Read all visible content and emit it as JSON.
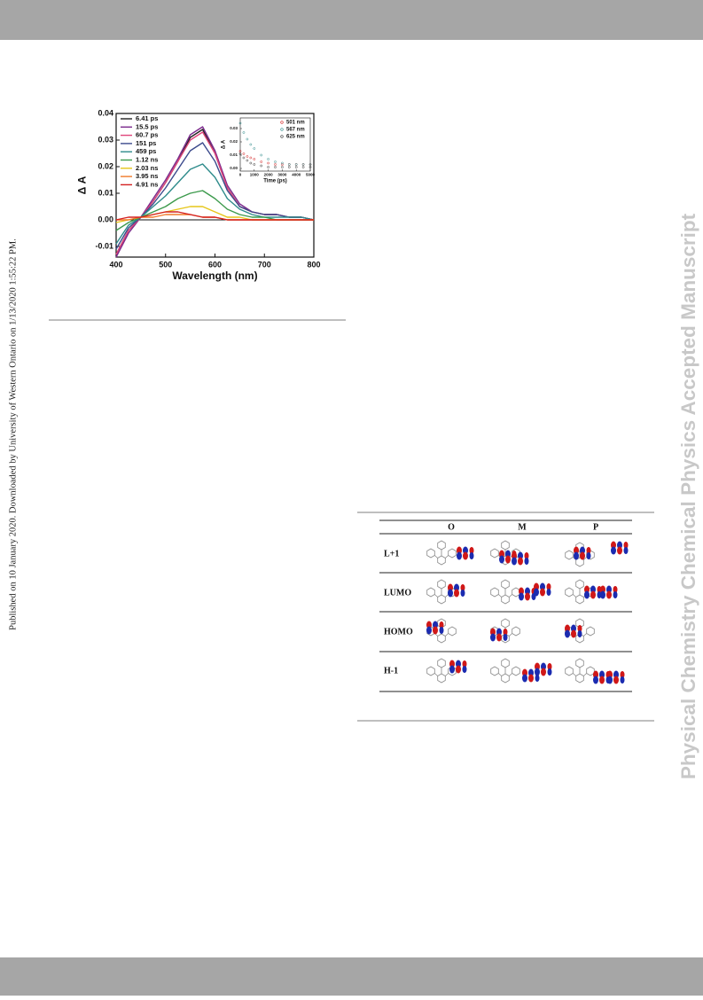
{
  "side_note": "Published on 10 January 2020. Downloaded by University of Western Ontario on 1/13/2020 1:55:22 PM.",
  "watermark": "Physical Chemistry Chemical Physics Accepted Manuscript",
  "chart_data": [
    {
      "type": "line",
      "xlabel": "Wavelength (nm)",
      "ylabel": "Δ A",
      "xlim": [
        400,
        800
      ],
      "xticks": [
        400,
        500,
        600,
        700,
        800
      ],
      "ylim": [
        -0.014,
        0.04
      ],
      "yticks": [
        -0.01,
        {
          "value": 0,
          "label": "0.00"
        },
        0.01,
        0.02,
        0.03,
        0.04
      ],
      "zero_line": true,
      "legend": "upper left",
      "x": [
        400,
        425,
        450,
        475,
        500,
        525,
        550,
        575,
        600,
        625,
        650,
        675,
        700,
        725,
        750,
        775,
        800
      ],
      "series": [
        {
          "name": "6.41 ps",
          "color": "#222222",
          "values": [
            -0.013,
            -0.004,
            0.001,
            0.007,
            0.014,
            0.022,
            0.031,
            0.034,
            0.025,
            0.012,
            0.005,
            0.003,
            0.002,
            0.002,
            0.001,
            0.001,
            0
          ]
        },
        {
          "name": "15.5 ps",
          "color": "#7b2a8c",
          "values": [
            -0.014,
            -0.005,
            0.001,
            0.008,
            0.015,
            0.023,
            0.032,
            0.035,
            0.026,
            0.013,
            0.006,
            0.003,
            0.002,
            0.002,
            0.001,
            0.001,
            0
          ]
        },
        {
          "name": "60.7 ps",
          "color": "#e0457b",
          "values": [
            -0.013,
            -0.004,
            0.001,
            0.007,
            0.014,
            0.022,
            0.03,
            0.033,
            0.025,
            0.012,
            0.005,
            0.003,
            0.002,
            0.002,
            0.001,
            0.001,
            0
          ]
        },
        {
          "name": "151 ps",
          "color": "#3b4a8c",
          "values": [
            -0.011,
            -0.003,
            0.001,
            0.006,
            0.012,
            0.019,
            0.026,
            0.029,
            0.022,
            0.011,
            0.005,
            0.003,
            0.002,
            0.002,
            0.001,
            0.001,
            0
          ]
        },
        {
          "name": "459 ps",
          "color": "#2e8b8b",
          "values": [
            -0.009,
            -0.002,
            0.001,
            0.005,
            0.009,
            0.014,
            0.019,
            0.021,
            0.016,
            0.008,
            0.004,
            0.002,
            0.001,
            0.001,
            0.001,
            0.001,
            0
          ]
        },
        {
          "name": "1.12 ns",
          "color": "#3c9a4c",
          "values": [
            -0.004,
            -0.001,
            0.001,
            0.003,
            0.005,
            0.008,
            0.01,
            0.011,
            0.008,
            0.004,
            0.002,
            0.001,
            0.001,
            0,
            0,
            0,
            0
          ]
        },
        {
          "name": "2.03 ns",
          "color": "#e6c619",
          "values": [
            -0.001,
            0,
            0.001,
            0.002,
            0.003,
            0.004,
            0.005,
            0.005,
            0.003,
            0.001,
            0.001,
            0,
            0,
            0,
            0,
            0,
            0
          ]
        },
        {
          "name": "3.95 ns",
          "color": "#f07a2a",
          "values": [
            0,
            0,
            0.001,
            0.001,
            0.002,
            0.002,
            0.002,
            0.001,
            0.001,
            0,
            0,
            0,
            0,
            0,
            0,
            0,
            0
          ]
        },
        {
          "name": "4.91 ns",
          "color": "#d42020",
          "values": [
            0,
            0.001,
            0.001,
            0.002,
            0.003,
            0.003,
            0.002,
            0.001,
            0.001,
            0,
            0,
            0,
            0,
            0,
            0,
            0,
            0
          ]
        }
      ]
    },
    {
      "type": "scatter",
      "xlabel": "Time (ps)",
      "ylabel": "Δ A",
      "xlim": [
        0,
        5000
      ],
      "xticks": [
        0,
        1000,
        2000,
        3000,
        4000,
        5000
      ],
      "ylim": [
        -0.002,
        0.038
      ],
      "yticks": [
        {
          "value": 0,
          "label": "0.00"
        },
        0.01,
        0.02,
        0.03
      ],
      "legend": "upper right",
      "x": [
        0,
        250,
        500,
        750,
        1000,
        1500,
        2000,
        2500,
        3000,
        3500,
        4000,
        4500,
        5000
      ],
      "series": [
        {
          "name": "501 nm",
          "color": "#d42020",
          "values": [
            0.013,
            0.011,
            0.009,
            0.008,
            0.007,
            0.005,
            0.004,
            0.003,
            0.003,
            0.003,
            0.003,
            0.003,
            0.003
          ]
        },
        {
          "name": "567 nm",
          "color": "#2e8b8b",
          "values": [
            0.034,
            0.027,
            0.022,
            0.018,
            0.015,
            0.01,
            0.007,
            0.005,
            0.004,
            0.003,
            0.003,
            0.003,
            0.003
          ]
        },
        {
          "name": "625 nm",
          "color": "#333333",
          "values": [
            0.011,
            0.008,
            0.006,
            0.004,
            0.003,
            0.002,
            0.001,
            0.001,
            0.001,
            0.001,
            0.001,
            0.001,
            0.001
          ]
        }
      ]
    }
  ],
  "table": {
    "header": [
      "O",
      "M",
      "P"
    ],
    "rows": [
      "L+1",
      "LUMO",
      "HOMO",
      "H-1"
    ]
  }
}
